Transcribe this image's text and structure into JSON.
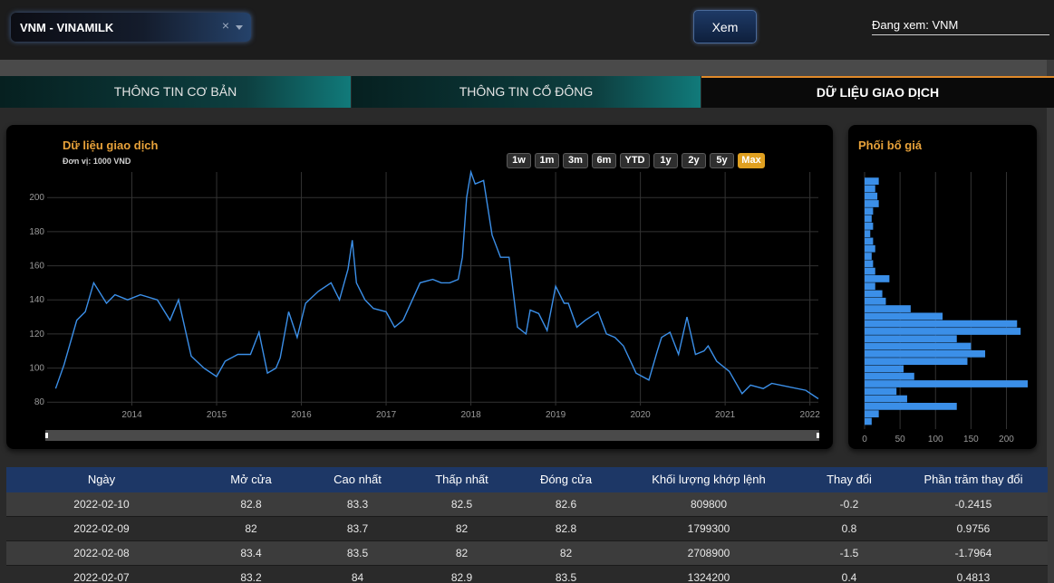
{
  "header": {
    "stock_select": {
      "value": "VNM - VINAMILK",
      "clear_icon": "×",
      "dropdown_icon": "chevron-down-icon"
    },
    "view_button": "Xem",
    "viewing_label": "Đang xem: VNM"
  },
  "tabs": [
    {
      "label": "THÔNG TIN CƠ BẢN",
      "active": false
    },
    {
      "label": "THÔNG TIN CỔ ĐÔNG",
      "active": false
    },
    {
      "label": "DỮ LIỆU GIAO DỊCH",
      "active": true
    }
  ],
  "colors": {
    "accent": "#e8a23a",
    "line": "#3b8fe8",
    "tab_active_border": "#e08a2a",
    "table_header": "#1d3766"
  },
  "chart_data": [
    {
      "type": "line",
      "title": "Dữ liệu giao dịch",
      "subtitle": "Đơn vị: 1000 VND",
      "range_buttons": [
        "1w",
        "1m",
        "3m",
        "6m",
        "YTD",
        "1y",
        "2y",
        "5y",
        "Max"
      ],
      "active_range": "Max",
      "x_ticks": [
        "2014",
        "2015",
        "2016",
        "2017",
        "2018",
        "2019",
        "2020",
        "2021",
        "2022"
      ],
      "y_ticks": [
        80,
        100,
        120,
        140,
        160,
        180,
        200
      ],
      "ylim": [
        78,
        215
      ],
      "grid": true,
      "series": [
        {
          "x": [
            2013.1,
            2013.2,
            2013.35,
            2013.45,
            2013.55,
            2013.7,
            2013.8,
            2013.95,
            2014.1,
            2014.3,
            2014.45,
            2014.55,
            2014.7,
            2014.85,
            2015.0,
            2015.1,
            2015.25,
            2015.4,
            2015.5,
            2015.6,
            2015.7,
            2015.75,
            2015.85,
            2015.95,
            2016.05,
            2016.2,
            2016.35,
            2016.45,
            2016.55,
            2016.6,
            2016.65,
            2016.75,
            2016.85,
            2017.0,
            2017.1,
            2017.2,
            2017.4,
            2017.55,
            2017.65,
            2017.75,
            2017.85,
            2017.9,
            2017.95,
            2018.0,
            2018.05,
            2018.15,
            2018.2,
            2018.25,
            2018.35,
            2018.45,
            2018.55,
            2018.65,
            2018.7,
            2018.8,
            2018.9,
            2019.0,
            2019.1,
            2019.15,
            2019.25,
            2019.35,
            2019.5,
            2019.6,
            2019.7,
            2019.8,
            2019.95,
            2020.1,
            2020.2,
            2020.25,
            2020.35,
            2020.45,
            2020.55,
            2020.65,
            2020.75,
            2020.8,
            2020.9,
            2021.05,
            2021.2,
            2021.3,
            2021.45,
            2021.55,
            2021.75,
            2021.95,
            2022.1
          ],
          "y": [
            88,
            102,
            128,
            133,
            150,
            138,
            143,
            140,
            143,
            140,
            128,
            140,
            107,
            100,
            95,
            104,
            108,
            108,
            121,
            97,
            100,
            106,
            133,
            118,
            138,
            145,
            150,
            140,
            158,
            175,
            150,
            140,
            135,
            133,
            124,
            128,
            150,
            152,
            150,
            150,
            152,
            165,
            200,
            215,
            208,
            210,
            194,
            178,
            165,
            165,
            124,
            120,
            134,
            132,
            122,
            148,
            138,
            138,
            124,
            128,
            133,
            120,
            118,
            113,
            97,
            93,
            110,
            118,
            121,
            108,
            130,
            108,
            110,
            113,
            104,
            98,
            85,
            90,
            88,
            91,
            89,
            87,
            82
          ]
        }
      ]
    },
    {
      "type": "bar",
      "title": "Phối bổ giá",
      "orientation": "horizontal",
      "x_ticks": [
        0,
        50,
        100,
        150,
        200
      ],
      "xlim": [
        0,
        230
      ],
      "ylim": [
        78,
        215
      ],
      "grid": true,
      "bins": [
        {
          "y": 82,
          "v": 10
        },
        {
          "y": 86,
          "v": 20
        },
        {
          "y": 90,
          "v": 130
        },
        {
          "y": 94,
          "v": 60
        },
        {
          "y": 98,
          "v": 45
        },
        {
          "y": 102,
          "v": 230
        },
        {
          "y": 106,
          "v": 70
        },
        {
          "y": 110,
          "v": 55
        },
        {
          "y": 114,
          "v": 145
        },
        {
          "y": 118,
          "v": 170
        },
        {
          "y": 122,
          "v": 150
        },
        {
          "y": 126,
          "v": 130
        },
        {
          "y": 130,
          "v": 220
        },
        {
          "y": 134,
          "v": 215
        },
        {
          "y": 138,
          "v": 110
        },
        {
          "y": 142,
          "v": 65
        },
        {
          "y": 146,
          "v": 30
        },
        {
          "y": 150,
          "v": 25
        },
        {
          "y": 154,
          "v": 15
        },
        {
          "y": 158,
          "v": 35
        },
        {
          "y": 162,
          "v": 15
        },
        {
          "y": 166,
          "v": 12
        },
        {
          "y": 170,
          "v": 10
        },
        {
          "y": 174,
          "v": 15
        },
        {
          "y": 178,
          "v": 12
        },
        {
          "y": 182,
          "v": 8
        },
        {
          "y": 186,
          "v": 12
        },
        {
          "y": 190,
          "v": 10
        },
        {
          "y": 194,
          "v": 12
        },
        {
          "y": 198,
          "v": 20
        },
        {
          "y": 202,
          "v": 18
        },
        {
          "y": 206,
          "v": 15
        },
        {
          "y": 210,
          "v": 20
        }
      ]
    }
  ],
  "table": {
    "columns": [
      "Ngày",
      "Mở cửa",
      "Cao nhất",
      "Thấp nhất",
      "Đóng cửa",
      "Khối lượng khớp lệnh",
      "Thay đổi",
      "Phần trăm thay đổi"
    ],
    "rows": [
      [
        "2022-02-10",
        "82.8",
        "83.3",
        "82.5",
        "82.6",
        "809800",
        "-0.2",
        "-0.2415"
      ],
      [
        "2022-02-09",
        "82",
        "83.7",
        "82",
        "82.8",
        "1799300",
        "0.8",
        "0.9756"
      ],
      [
        "2022-02-08",
        "83.4",
        "83.5",
        "82",
        "82",
        "2708900",
        "-1.5",
        "-1.7964"
      ],
      [
        "2022-02-07",
        "83.2",
        "84",
        "82.9",
        "83.5",
        "1324200",
        "0.4",
        "0.4813"
      ]
    ]
  }
}
